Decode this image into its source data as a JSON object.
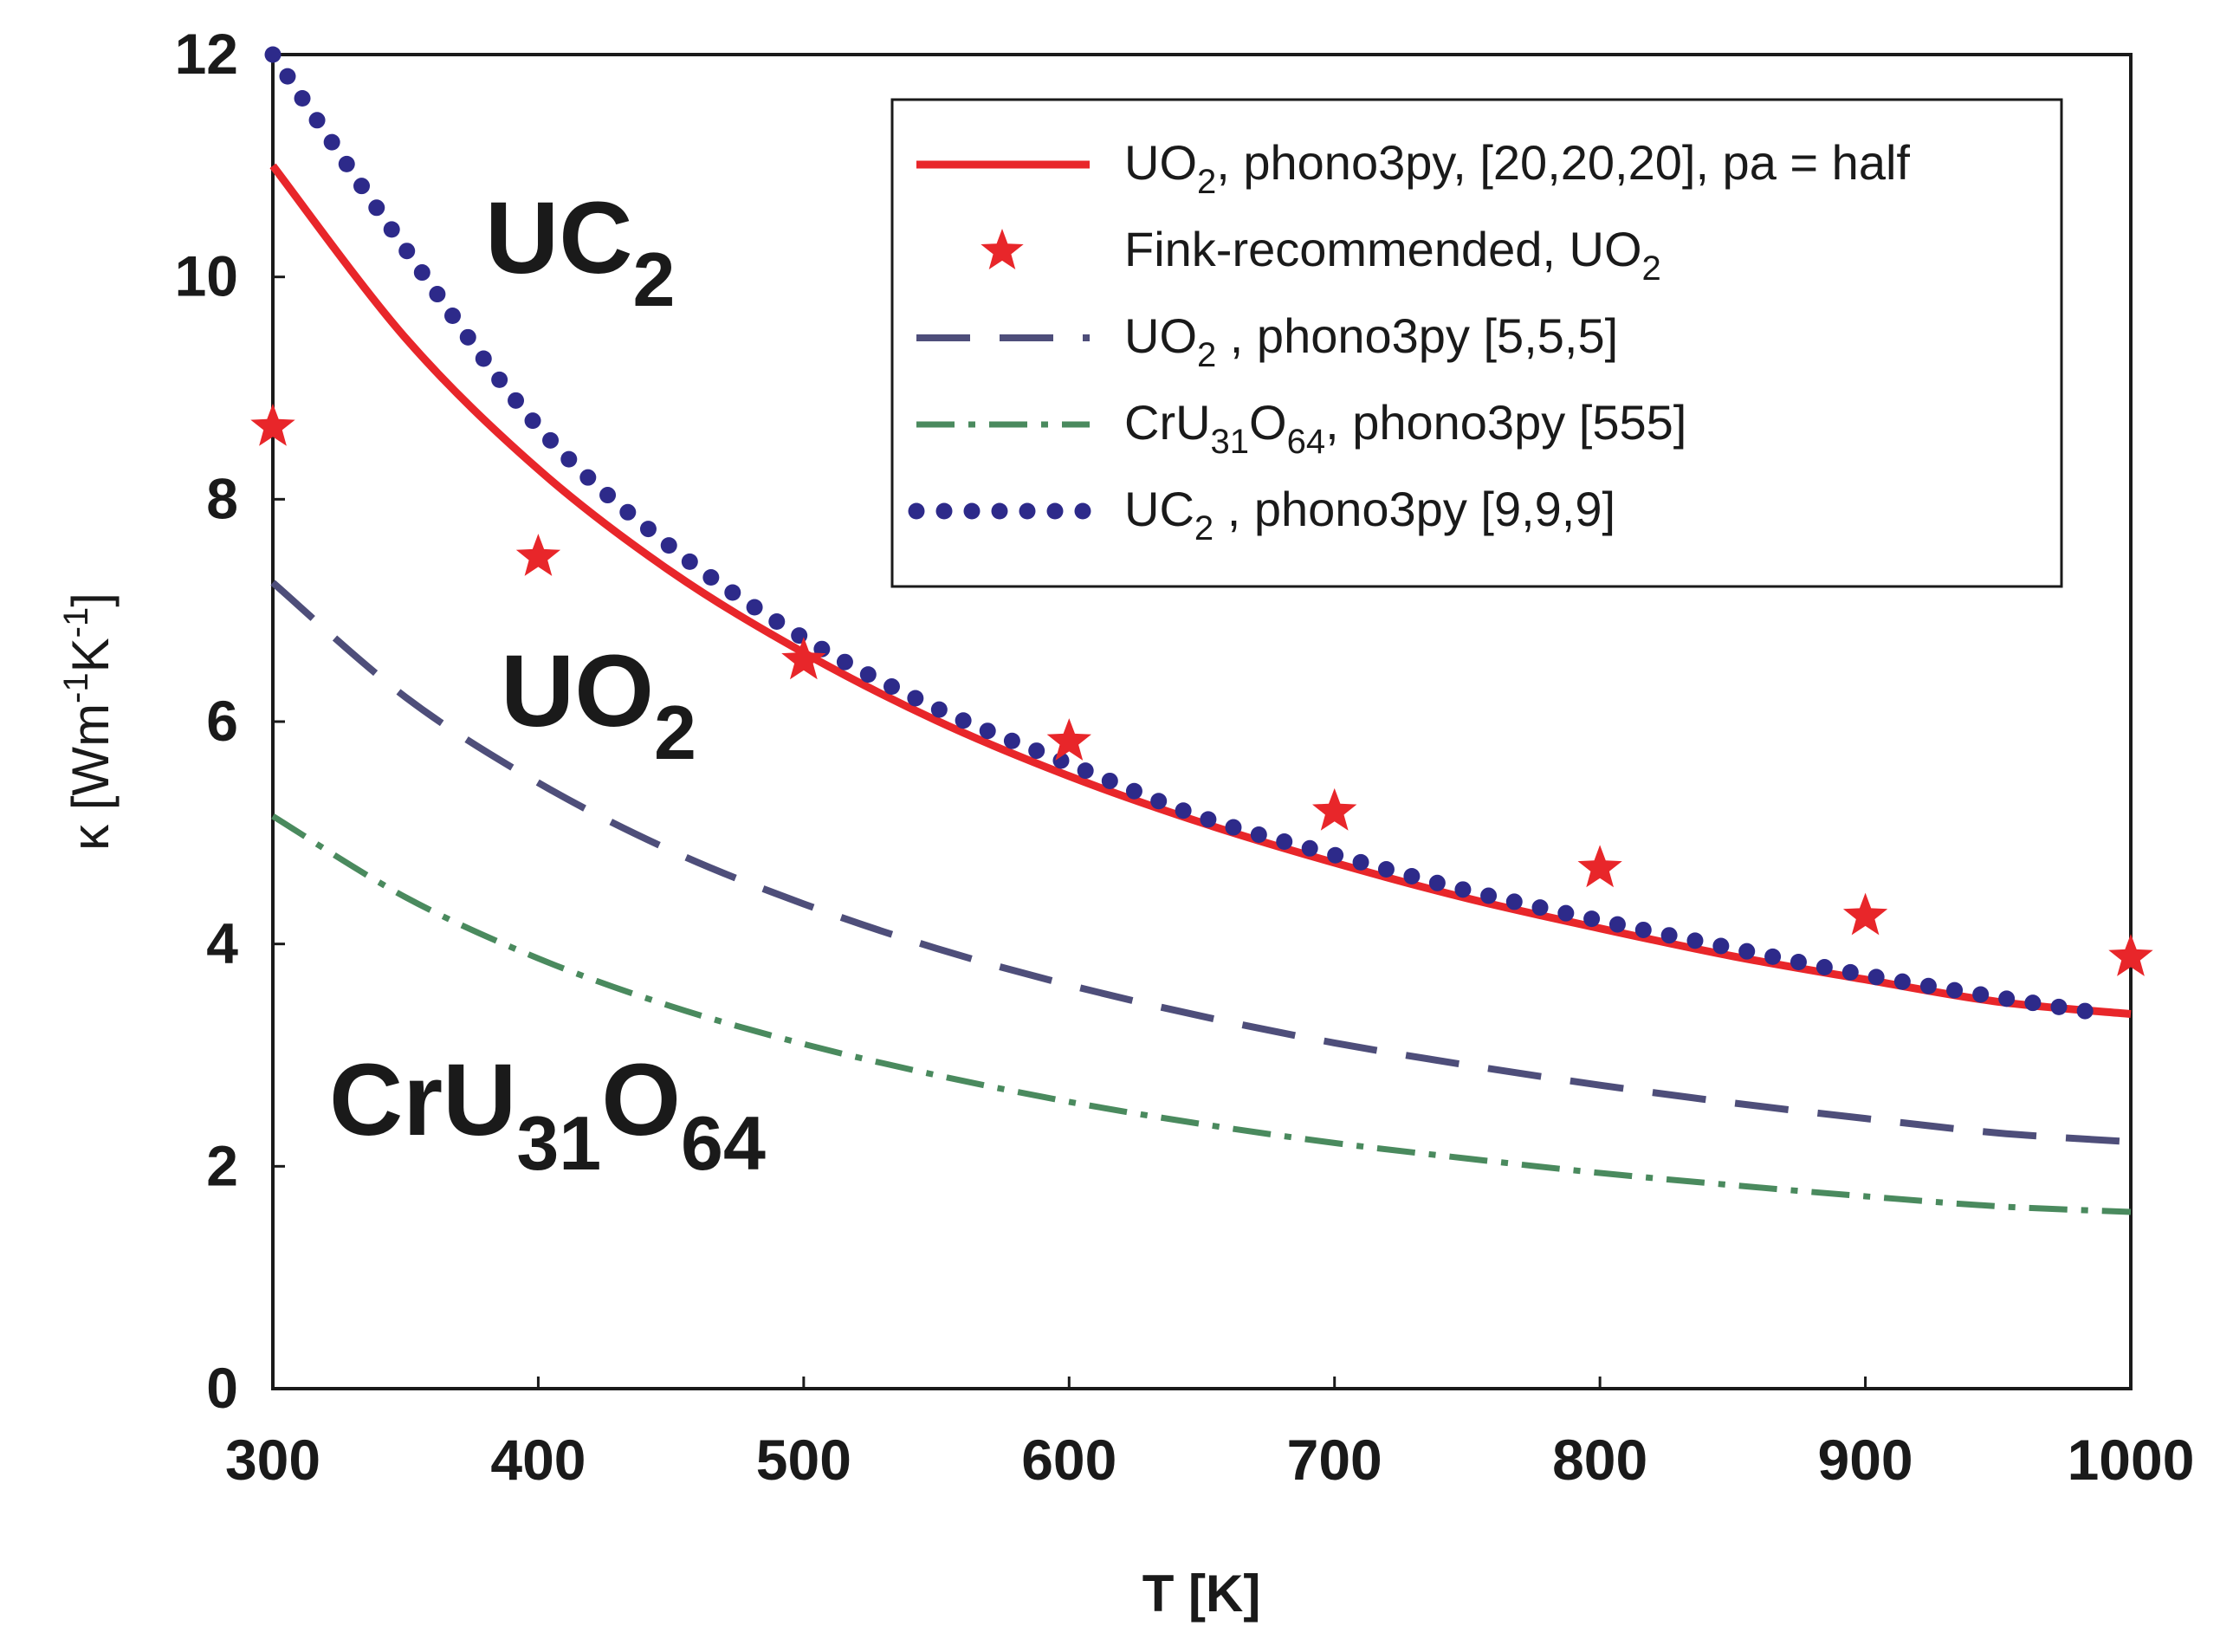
{
  "chart_data": {
    "type": "line",
    "title": "",
    "xlabel": "T [K]",
    "ylabel": "κ [Wm-1K-1]",
    "ylabel_parts": {
      "pre": "κ [Wm",
      "sup1": "-1",
      "mid": "K",
      "sup2": "-1",
      "post": "]"
    },
    "xlim": [
      300,
      1000
    ],
    "ylim": [
      0,
      12
    ],
    "xticks": [
      300,
      400,
      500,
      600,
      700,
      800,
      900,
      1000
    ],
    "yticks": [
      0,
      2,
      4,
      6,
      8,
      10,
      12
    ],
    "legend_position": "top-right",
    "series": [
      {
        "name": "UO2, phono3py, [20,20,20], pa = half",
        "legend_parts": [
          "UO",
          "2",
          ", phono3py, [20,20,20], pa = half"
        ],
        "style": "solid",
        "color": "#e8262a",
        "x": [
          300,
          350,
          400,
          450,
          500,
          550,
          600,
          650,
          700,
          750,
          800,
          850,
          900,
          950,
          1000
        ],
        "y": [
          11.0,
          9.45,
          8.27,
          7.35,
          6.62,
          6.01,
          5.51,
          5.09,
          4.73,
          4.41,
          4.14,
          3.89,
          3.68,
          3.48,
          3.37
        ]
      },
      {
        "name": "Fink-recommended, UO2",
        "legend_parts": [
          "Fink-recommended, UO",
          "2",
          ""
        ],
        "style": "star",
        "color": "#e8262a",
        "x": [
          300,
          400,
          500,
          600,
          700,
          800,
          900,
          1000
        ],
        "y": [
          8.65,
          7.48,
          6.55,
          5.82,
          5.19,
          4.68,
          4.25,
          3.88
        ]
      },
      {
        "name": "UO2 , phono3py [5,5,5]",
        "legend_parts": [
          "UO",
          "2",
          " , phono3py [5,5,5]"
        ],
        "style": "dashed",
        "color": "#4e4e7a",
        "x": [
          300,
          350,
          400,
          450,
          500,
          550,
          600,
          650,
          700,
          750,
          800,
          850,
          900,
          950,
          1000
        ],
        "y": [
          7.25,
          6.22,
          5.45,
          4.84,
          4.36,
          3.96,
          3.63,
          3.35,
          3.11,
          2.91,
          2.73,
          2.57,
          2.43,
          2.3,
          2.22
        ]
      },
      {
        "name": "CrU31O64, phono3py [555]",
        "legend_parts": [
          "CrU",
          "31",
          "O",
          "64",
          ", phono3py [555]"
        ],
        "style": "dashdot",
        "color": "#4a8a5e",
        "x": [
          300,
          350,
          400,
          450,
          500,
          550,
          600,
          650,
          700,
          750,
          800,
          850,
          900,
          950,
          1000
        ],
        "y": [
          5.15,
          4.42,
          3.87,
          3.44,
          3.1,
          2.82,
          2.58,
          2.38,
          2.21,
          2.07,
          1.94,
          1.83,
          1.73,
          1.64,
          1.59
        ]
      },
      {
        "name": "UC2 , phono3py [9,9,9]",
        "legend_parts": [
          "UC",
          "2",
          " , phono3py [9,9,9]"
        ],
        "style": "dotted",
        "color": "#2d2a8a",
        "x": [
          300,
          350,
          400,
          450,
          500,
          550,
          600,
          650,
          700,
          750,
          800,
          850,
          900,
          950,
          990
        ],
        "y": [
          12.0,
          10.25,
          8.65,
          7.57,
          6.75,
          6.12,
          5.62,
          5.14,
          4.8,
          4.48,
          4.21,
          3.96,
          3.72,
          3.52,
          3.37
        ]
      }
    ],
    "annotations": [
      {
        "base": "UC",
        "sub": "2"
      },
      {
        "base": "UO",
        "sub": "2"
      },
      {
        "base": "CrU",
        "sub": "31",
        "base2": "O",
        "sub2": "64"
      }
    ]
  }
}
